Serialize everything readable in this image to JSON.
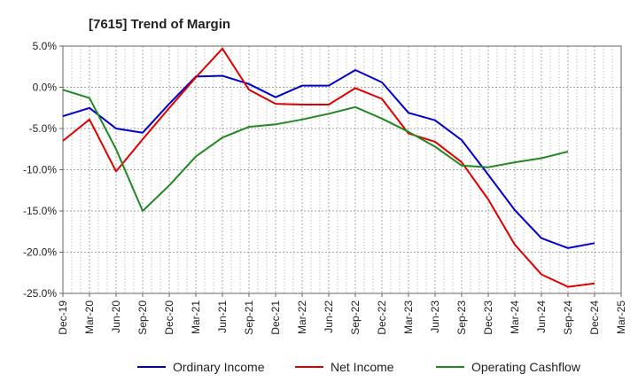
{
  "chart_data": {
    "type": "line",
    "title": "[7615]  Trend of Margin",
    "xlabel": "",
    "ylabel": "",
    "ylim": [
      -25,
      5
    ],
    "yticks": [
      5,
      0,
      -5,
      -10,
      -15,
      -20,
      -25
    ],
    "ytick_labels": [
      "5.0%",
      "0.0%",
      "-5.0%",
      "-10.0%",
      "-15.0%",
      "-20.0%",
      "-25.0%"
    ],
    "categories": [
      "Dec-19",
      "Mar-20",
      "Jun-20",
      "Sep-20",
      "Dec-20",
      "Mar-21",
      "Jun-21",
      "Sep-21",
      "Dec-21",
      "Mar-22",
      "Jun-22",
      "Sep-22",
      "Dec-22",
      "Mar-23",
      "Jun-23",
      "Sep-23",
      "Dec-23",
      "Mar-24",
      "Jun-24",
      "Sep-24",
      "Dec-24",
      "Mar-25"
    ],
    "grid": true,
    "legend_position": "bottom",
    "series": [
      {
        "name": "Ordinary Income",
        "color": "#0000cc",
        "values": [
          -3.5,
          -2.5,
          -5.0,
          -5.5,
          -2.0,
          1.3,
          1.4,
          0.4,
          -1.2,
          0.2,
          0.2,
          2.1,
          0.6,
          -3.1,
          -4.0,
          -6.4,
          -10.6,
          -14.9,
          -18.3,
          -19.5,
          -18.9,
          null
        ]
      },
      {
        "name": "Net Income",
        "color": "#dd0000",
        "values": [
          -6.5,
          -3.9,
          -10.2,
          -6.3,
          -2.5,
          1.2,
          4.7,
          -0.3,
          -2.0,
          -2.1,
          -2.1,
          -0.1,
          -1.4,
          -5.6,
          -6.6,
          -9.1,
          -13.6,
          -19.1,
          -22.7,
          -24.2,
          -23.8,
          null
        ]
      },
      {
        "name": "Operating Cashflow",
        "color": "#228822",
        "values": [
          -0.3,
          -1.3,
          -7.5,
          -15.0,
          -11.9,
          -8.4,
          -6.1,
          -4.8,
          -4.5,
          -3.9,
          -3.2,
          -2.4,
          -3.8,
          -5.4,
          -7.2,
          -9.5,
          -9.7,
          -9.1,
          -8.6,
          -7.8,
          null,
          null
        ]
      }
    ]
  }
}
